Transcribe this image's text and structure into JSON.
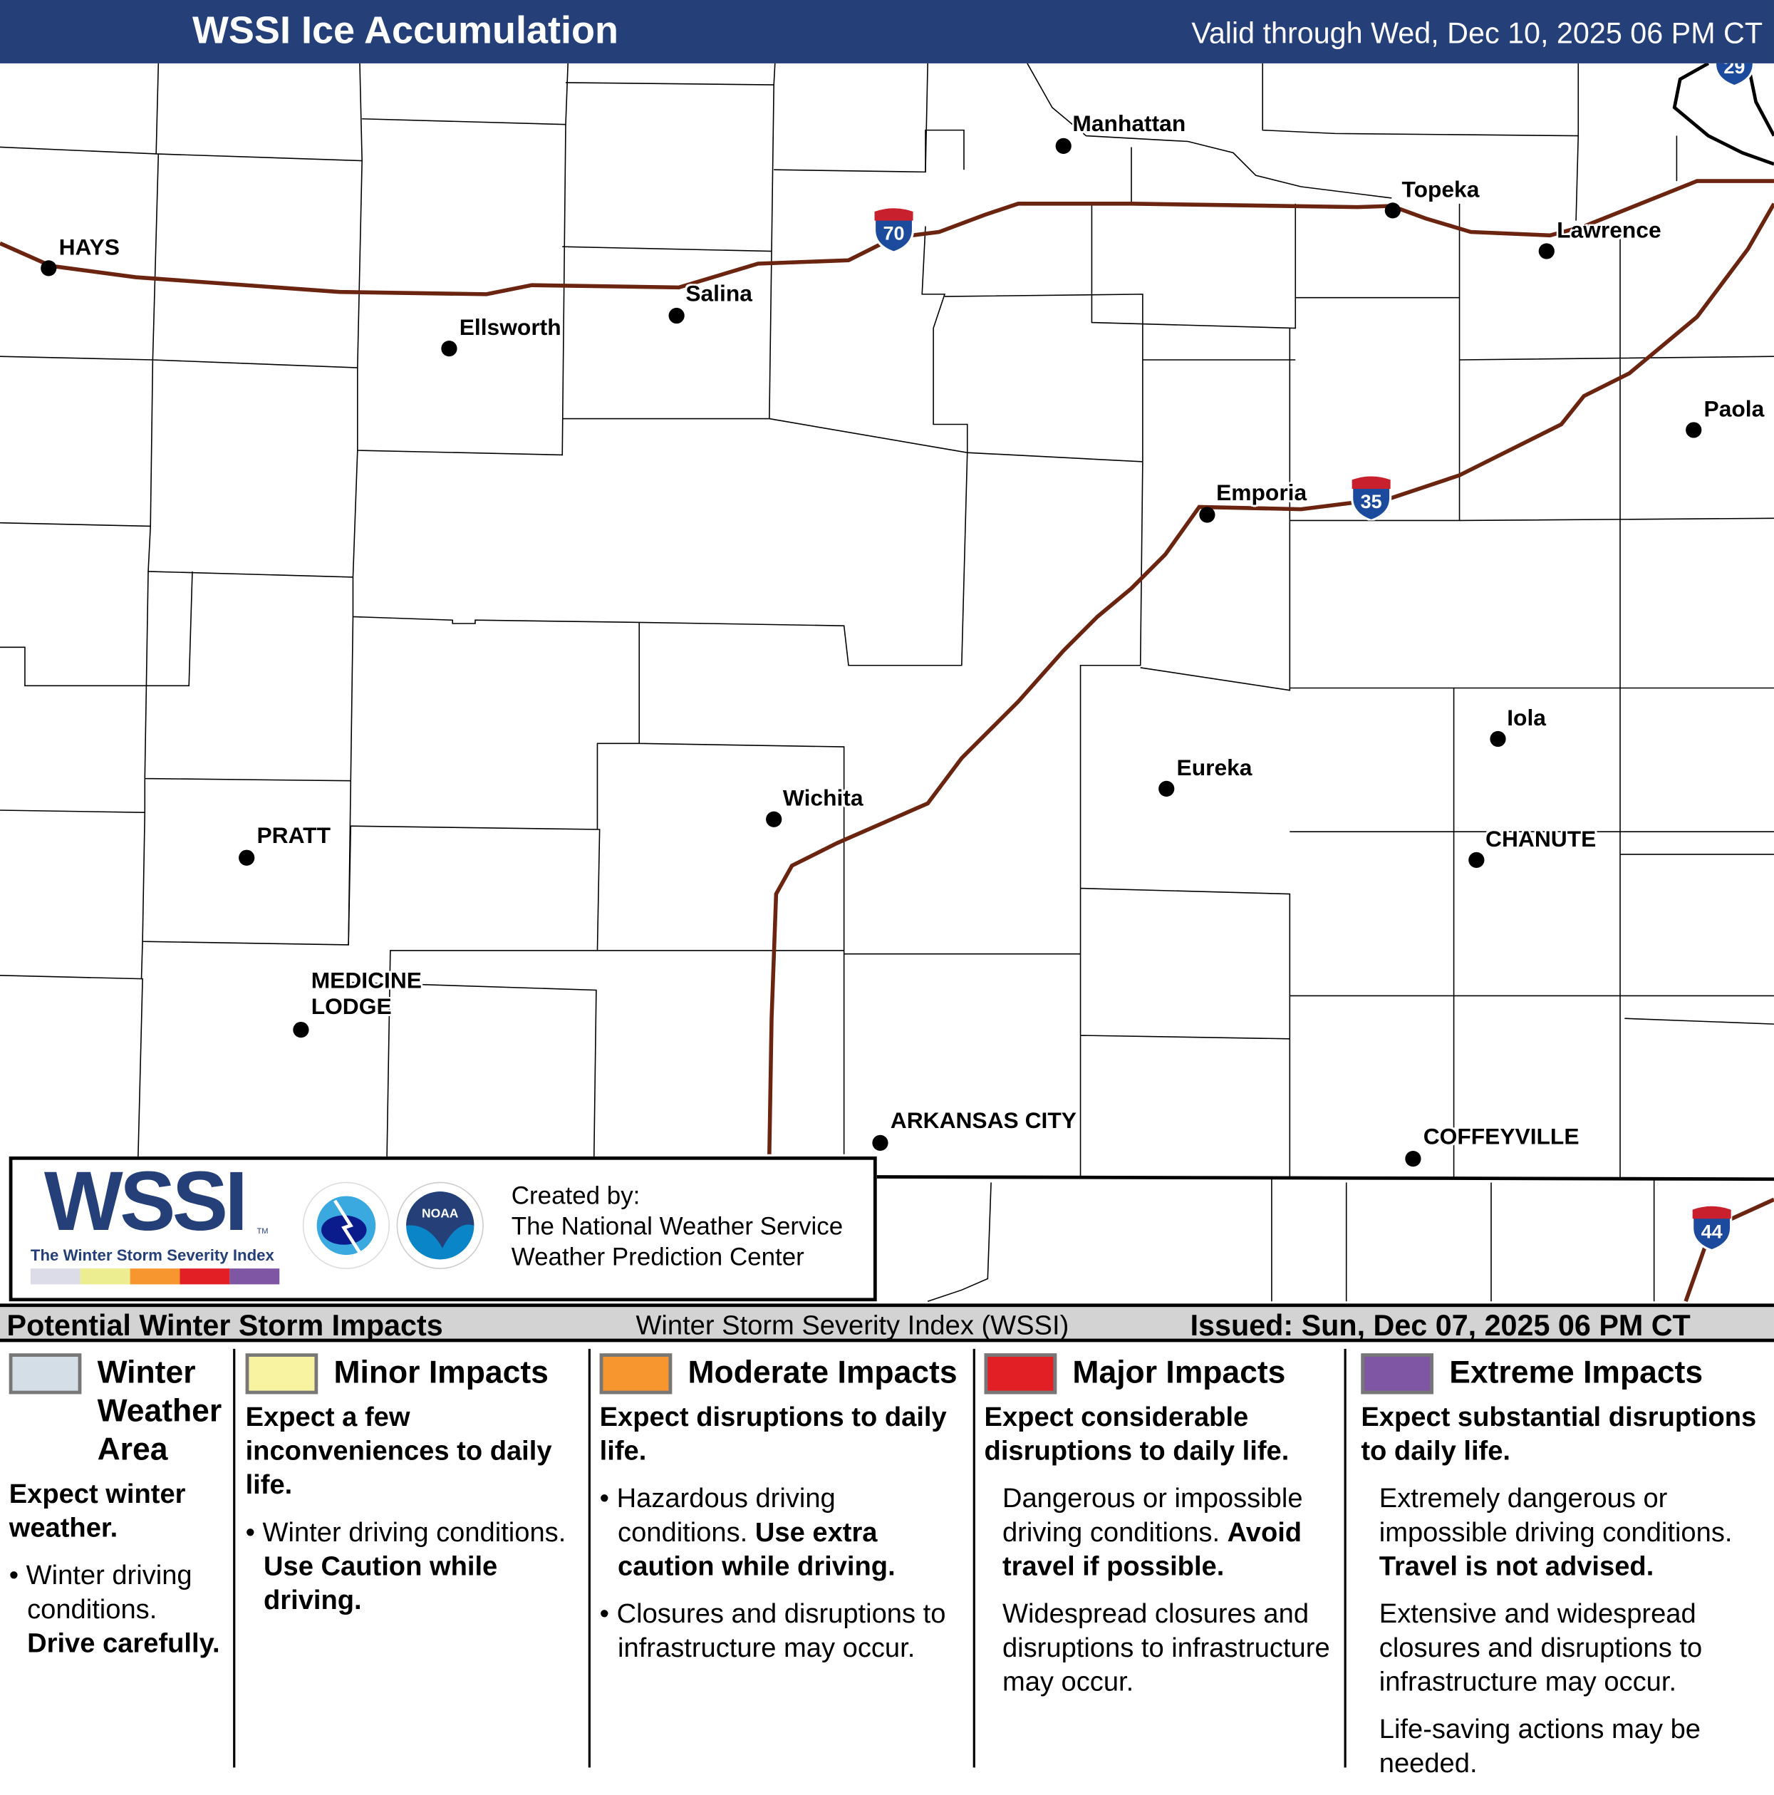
{
  "header": {
    "title": "WSSI Ice Accumulation",
    "valid": "Valid through Wed, Dec 10, 2025 06 PM CT",
    "bg": "#253f78"
  },
  "map": {
    "cities": [
      "HAYS",
      "Ellsworth",
      "Salina",
      "Manhattan",
      "Topeka",
      "Lawrence",
      "Paola",
      "Emporia",
      "Wichita",
      "Eureka",
      "Iola",
      "CHANUTE",
      "PRATT",
      "MEDICINE LODGE",
      "ARKANSAS CITY",
      "COFFEYVILLE"
    ],
    "shields": [
      "70",
      "35",
      "44",
      "29"
    ],
    "road_color": "#6b2410"
  },
  "logo": {
    "wssi": "WSSI",
    "tm": "TM",
    "subtitle": "The Winter Storm Severity Index",
    "nws": "NATIONAL WEATHER SERVICE",
    "noaa": "NOAA",
    "created_by": "Created by:",
    "org1": "The National Weather Service",
    "org2": "Weather Prediction Center"
  },
  "legend": {
    "title": "Potential Winter Storm Impacts",
    "subtitle": "Winter Storm Severity Index (WSSI)",
    "issued": "Issued: Sun, Dec 07, 2025 06 PM CT",
    "categories": [
      {
        "name": "Winter Weather Area",
        "color": "#d4dee6",
        "summary": "Expect winter weather.",
        "b1": "Winter driving conditions.",
        "b1bold": "Drive carefully."
      },
      {
        "name": "Minor Impacts",
        "color": "#f7f3a0",
        "summary": "Expect a few inconveniences to daily life.",
        "b1": "Winter driving conditions.",
        "b1bold": "Use Caution while driving."
      },
      {
        "name": "Moderate Impacts",
        "color": "#f7962f",
        "summary": "Expect disruptions to daily life.",
        "b1": "Hazardous driving conditions.",
        "b1bold": "Use extra caution while driving.",
        "b2": "Closures and disruptions to infrastructure may occur."
      },
      {
        "name": "Major Impacts",
        "color": "#e31f26",
        "summary": "Expect considerable disruptions to daily life.",
        "p1": "Dangerous or impossible driving conditions.",
        "p1bold": "Avoid travel if possible.",
        "p2": "Widespread closures and disruptions to infrastructure may occur."
      },
      {
        "name": "Extreme Impacts",
        "color": "#7e56a4",
        "summary": "Expect substantial disruptions to daily life.",
        "p1": "Extremely dangerous or impossible driving conditions.",
        "p1bold": "Travel is not advised.",
        "p2": "Extensive and widespread closures and disruptions to infrastructure may occur.",
        "p3": "Life-saving actions may be needed."
      }
    ]
  }
}
